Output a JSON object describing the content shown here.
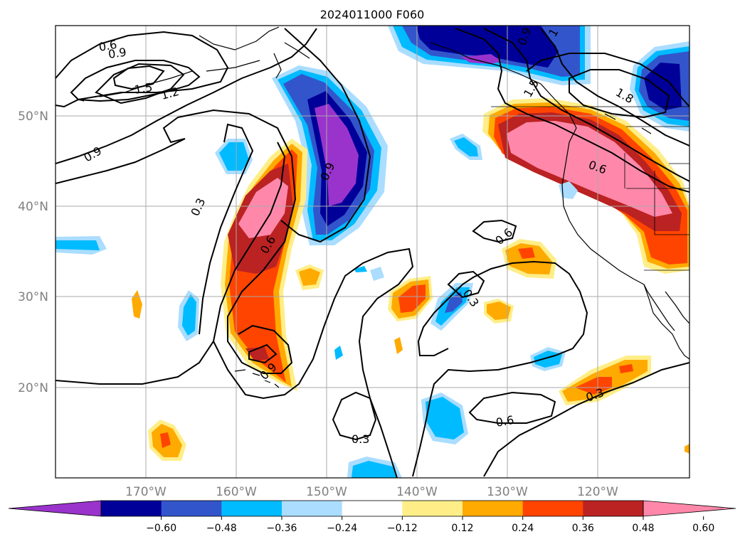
{
  "title": "2024011000 F060",
  "longitude_labels": [
    "170°W",
    "160°W",
    "150°W",
    "140°W",
    "130°W",
    "120°W"
  ],
  "latitude_labels": [
    "50°N",
    "40°N",
    "30°N",
    "20°N"
  ],
  "colorbar": {
    "ticks": [
      "−0.60",
      "−0.48",
      "−0.36",
      "−0.24",
      "−0.12",
      "0.12",
      "0.24",
      "0.36",
      "0.48",
      "0.60"
    ],
    "colors": [
      "#9933cc",
      "#000099",
      "#3355cc",
      "#00bbff",
      "#aaddff",
      "#ffffff",
      "#ffee88",
      "#ffaa00",
      "#ff4400",
      "#bb2222",
      "#ff88aa"
    ]
  },
  "contour_labels": [
    "0.6",
    "0.9",
    "1.5",
    "1.2",
    "0.9",
    "0.3",
    "0.6",
    "0.9",
    "0.9",
    "0.9",
    "1",
    "1.5",
    "1.8",
    "0.6",
    "0.6",
    "0.3",
    "0.6",
    "0.3",
    "0.3"
  ]
}
